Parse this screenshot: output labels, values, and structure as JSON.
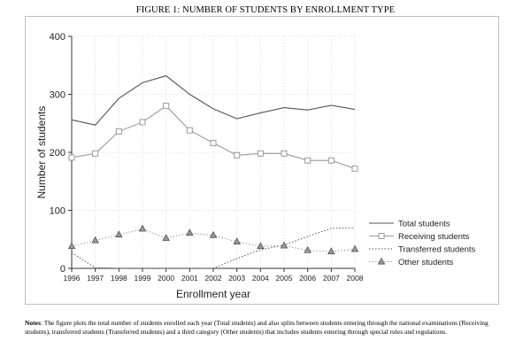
{
  "figure": {
    "title": "FIGURE 1: NUMBER OF STUDENTS BY ENROLLMENT TYPE",
    "notes_label": "Notes",
    "notes_text": ": The figure plots the total number of students enrolled each year (Total students) and also splits between students entering through the national examinations (Receiving students), transferred students (Transferred students) and a third category (Other students) that includes students entering through special rules and regulations."
  },
  "chart_data": {
    "type": "line",
    "title": "",
    "xlabel": "Enrollment year",
    "ylabel": "Number of students",
    "x": [
      1996,
      1997,
      1998,
      1999,
      2000,
      2001,
      2002,
      2003,
      2004,
      2005,
      2006,
      2007,
      2008
    ],
    "xlim": [
      1996,
      2008
    ],
    "ylim": [
      0,
      400
    ],
    "yticks": [
      0,
      100,
      200,
      300,
      400
    ],
    "grid": true,
    "legend_position": "right",
    "series": [
      {
        "name": "Total students",
        "style": "solid",
        "color": "#555555",
        "marker": "none",
        "values": [
          256,
          247,
          293,
          320,
          332,
          300,
          275,
          258,
          268,
          277,
          273,
          281,
          274
        ]
      },
      {
        "name": "Receiving students",
        "style": "solid",
        "color": "#9a9a9a",
        "marker": "square",
        "values": [
          191,
          198,
          236,
          252,
          280,
          238,
          216,
          195,
          198,
          198,
          186,
          186,
          172
        ]
      },
      {
        "name": "Transferred students",
        "style": "dotted",
        "color": "#555555",
        "marker": "none",
        "values": [
          27,
          1,
          0,
          0,
          0,
          0,
          0,
          17,
          32,
          40,
          55,
          69,
          70
        ]
      },
      {
        "name": "Other students",
        "style": "dotted",
        "color": "#9a9a9a",
        "marker": "triangle",
        "values": [
          38,
          48,
          58,
          68,
          52,
          61,
          57,
          46,
          38,
          39,
          31,
          29,
          33
        ]
      }
    ]
  }
}
